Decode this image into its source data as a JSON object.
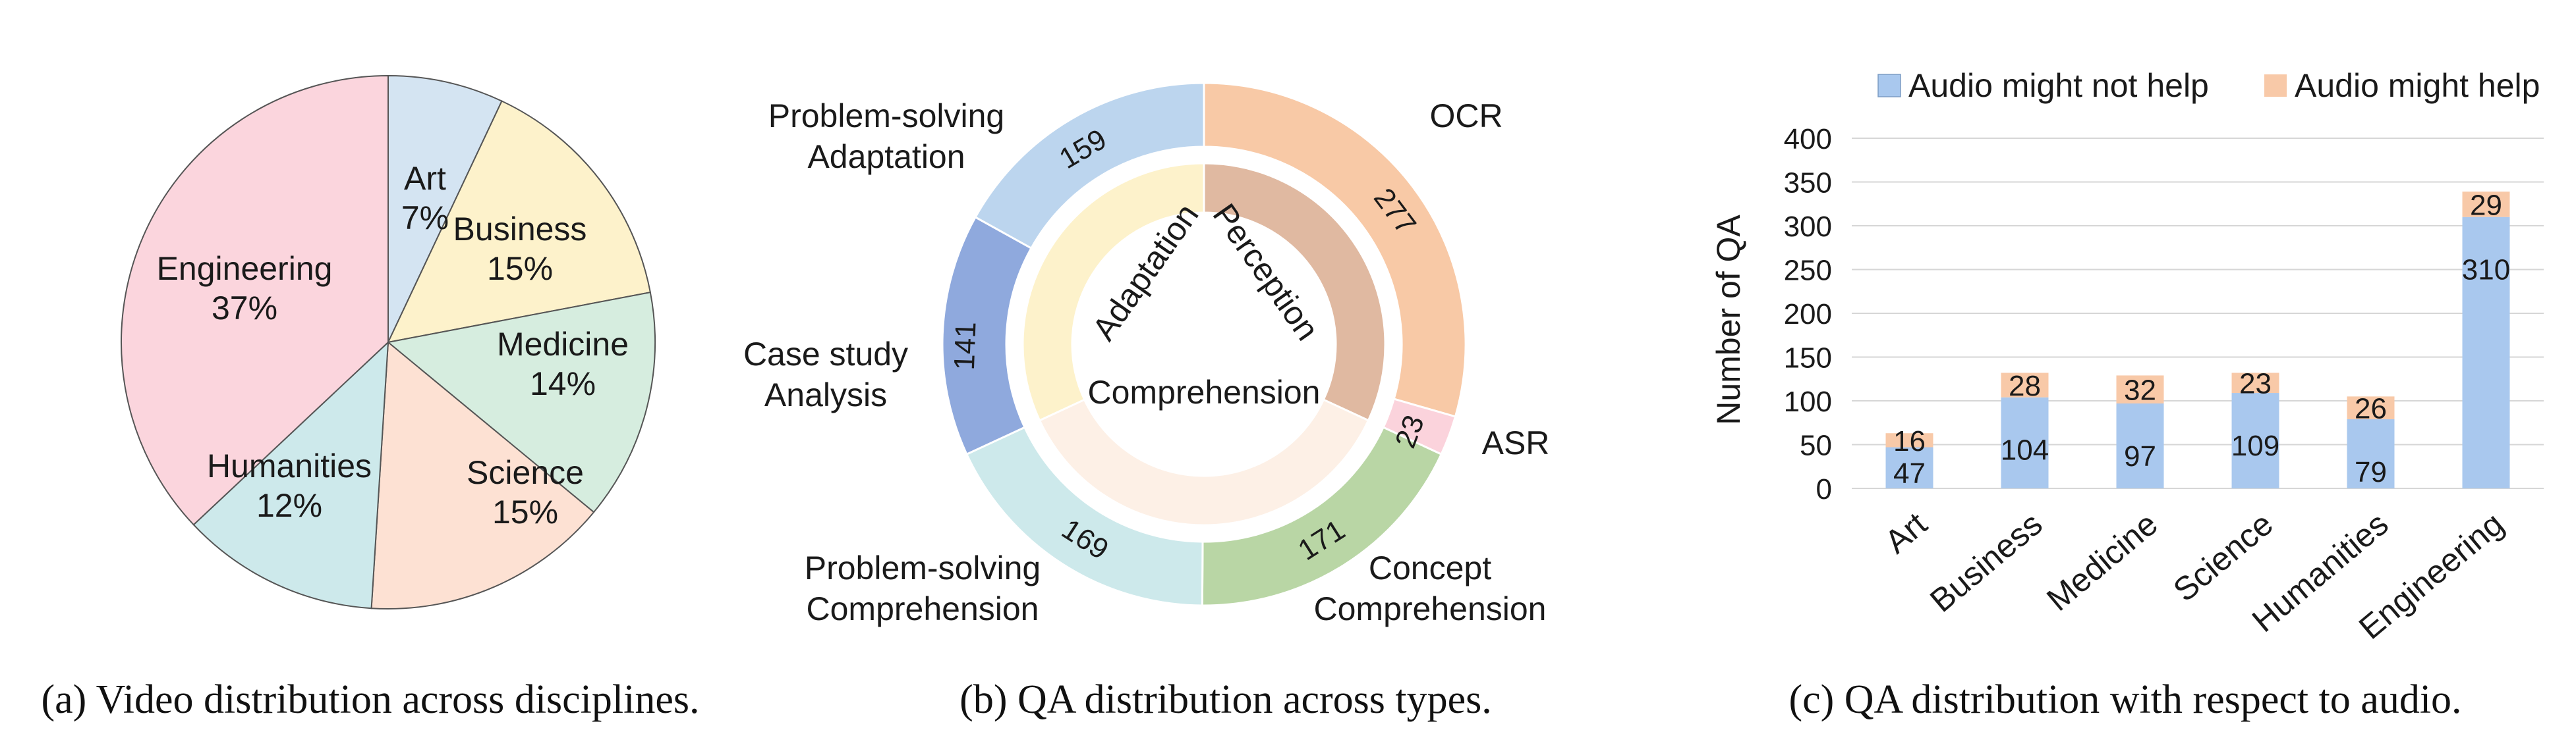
{
  "captions": {
    "a": "(a) Video distribution across disciplines.",
    "b": "(b) QA distribution across types.",
    "c": "(c) QA distribution with respect to audio."
  },
  "chart_data": [
    {
      "type": "pie",
      "labels": [
        "Art",
        "Business",
        "Medicine",
        "Science",
        "Humanities",
        "Engineering"
      ],
      "values": [
        7,
        15,
        14,
        15,
        12,
        37
      ],
      "value_labels": [
        "7%",
        "15%",
        "14%",
        "15%",
        "12%",
        "37%"
      ],
      "colors": [
        "#d4e4f2",
        "#fdf2cb",
        "#d6eddf",
        "#fde1d3",
        "#cde9eb",
        "#fbd5dd"
      ]
    },
    {
      "type": "pie",
      "subtype": "donut",
      "outer": {
        "labels": [
          "OCR",
          "ASR",
          "Concept Comprehension",
          "Problem-solving Comprehension",
          "Case study Analysis",
          "Problem-solving Adaptation"
        ],
        "values": [
          277,
          23,
          171,
          169,
          141,
          159
        ],
        "value_labels": [
          "277",
          "23",
          "171",
          "169",
          "141",
          "159"
        ],
        "colors": [
          "#f8c9a6",
          "#fbd3dc",
          "#b9d6a5",
          "#cde9eb",
          "#8fa9dd",
          "#bcd5ee"
        ]
      },
      "inner": {
        "labels": [
          "Perception",
          "Comprehension",
          "Adaptation"
        ],
        "values": [
          300,
          340,
          300
        ],
        "colors": [
          "#e0b9a1",
          "#fdf0e6",
          "#fdf2cb"
        ]
      }
    },
    {
      "type": "bar",
      "stacked": true,
      "categories": [
        "Art",
        "Business",
        "Medicine",
        "Science",
        "Humanities",
        "Engineering"
      ],
      "series": [
        {
          "name": "Audio might not help",
          "values": [
            47,
            104,
            97,
            109,
            79,
            310
          ],
          "color": "#a9c8ee"
        },
        {
          "name": "Audio might help",
          "values": [
            16,
            28,
            32,
            23,
            26,
            29
          ],
          "color": "#f8c9a8"
        }
      ],
      "ylabel": "Number of QA",
      "ylim": [
        0,
        400
      ],
      "yticks": [
        0,
        50,
        100,
        150,
        200,
        250,
        300,
        350,
        400
      ],
      "grid": true,
      "legend": "top"
    }
  ]
}
